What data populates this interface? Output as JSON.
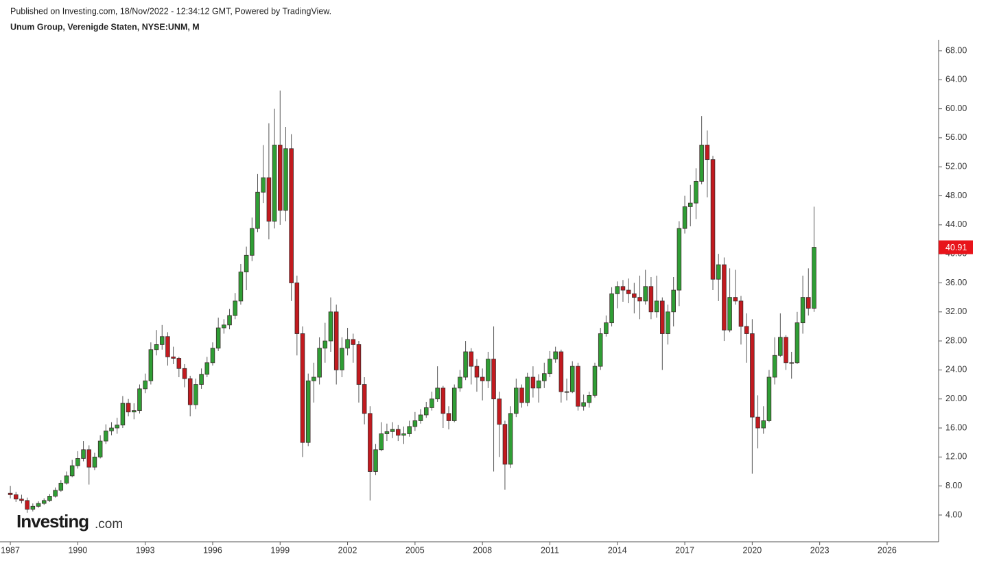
{
  "chart_data": {
    "type": "candlestick",
    "title": "Published on Investing.com, 18/Nov/2022 - 12:34:12 GMT, Powered by TradingView.",
    "subtitle": "Unum Group, Verenigde Staten, NYSE:UNM, M",
    "logo": "Investing",
    "logo_suffix": ".com",
    "up_color": "#2f9e35",
    "down_color": "#c21a1f",
    "grid": false,
    "xlim": [
      1986.54,
      2028.29
    ],
    "ylim": [
      0.31,
      69.51
    ],
    "xticks": [
      1987,
      1990,
      1993,
      1996,
      1999,
      2002,
      2005,
      2008,
      2011,
      2014,
      2017,
      2020,
      2023,
      2026
    ],
    "yticks": [
      {
        "value": 4,
        "label": "4.00"
      },
      {
        "value": 8,
        "label": "8.00"
      },
      {
        "value": 12,
        "label": "12.00"
      },
      {
        "value": 16,
        "label": "16.00"
      },
      {
        "value": 20,
        "label": "20.00"
      },
      {
        "value": 24,
        "label": "24.00"
      },
      {
        "value": 28,
        "label": "28.00"
      },
      {
        "value": 32,
        "label": "32.00"
      },
      {
        "value": 36,
        "label": "36.00"
      },
      {
        "value": 40,
        "label": "40.00"
      },
      {
        "value": 44,
        "label": "44.00"
      },
      {
        "value": 48,
        "label": "48.00"
      },
      {
        "value": 52,
        "label": "52.00"
      },
      {
        "value": 56,
        "label": "56.00"
      },
      {
        "value": 60,
        "label": "60.00"
      },
      {
        "value": 64,
        "label": "64.00"
      },
      {
        "value": 68,
        "label": "68.00"
      }
    ],
    "x": [
      1987,
      1987.25,
      1987.5,
      1987.75,
      1988,
      1988.25,
      1988.5,
      1988.75,
      1989,
      1989.25,
      1989.5,
      1989.75,
      1990,
      1990.25,
      1990.5,
      1990.75,
      1991,
      1991.25,
      1991.5,
      1991.75,
      1992,
      1992.25,
      1992.5,
      1992.75,
      1993,
      1993.25,
      1993.5,
      1993.75,
      1994,
      1994.25,
      1994.5,
      1994.75,
      1995,
      1995.25,
      1995.5,
      1995.75,
      1996,
      1996.25,
      1996.5,
      1996.75,
      1997,
      1997.25,
      1997.5,
      1997.75,
      1998,
      1998.25,
      1998.5,
      1998.75,
      1999,
      1999.25,
      1999.5,
      1999.75,
      2000,
      2000.25,
      2000.5,
      2000.75,
      2001,
      2001.25,
      2001.5,
      2001.75,
      2002,
      2002.25,
      2002.5,
      2002.75,
      2003,
      2003.25,
      2003.5,
      2003.75,
      2004,
      2004.25,
      2004.5,
      2004.75,
      2005,
      2005.25,
      2005.5,
      2005.75,
      2006,
      2006.25,
      2006.5,
      2006.75,
      2007,
      2007.25,
      2007.5,
      2007.75,
      2008,
      2008.25,
      2008.5,
      2008.75,
      2009,
      2009.25,
      2009.5,
      2009.75,
      2010,
      2010.25,
      2010.5,
      2010.75,
      2011,
      2011.25,
      2011.5,
      2011.75,
      2012,
      2012.25,
      2012.5,
      2012.75,
      2013,
      2013.25,
      2013.5,
      2013.75,
      2014,
      2014.25,
      2014.5,
      2014.75,
      2015,
      2015.25,
      2015.5,
      2015.75,
      2016,
      2016.25,
      2016.5,
      2016.75,
      2017,
      2017.25,
      2017.5,
      2017.75,
      2018,
      2018.25,
      2018.5,
      2018.75,
      2019,
      2019.25,
      2019.5,
      2019.75,
      2020,
      2020.25,
      2020.5,
      2020.75,
      2021,
      2021.25,
      2021.5,
      2021.75,
      2022,
      2022.25,
      2022.5,
      2022.75
    ],
    "open": [
      7.0,
      6.8,
      6.2,
      6.0,
      4.8,
      5.2,
      5.6,
      6.0,
      6.6,
      7.4,
      8.4,
      9.4,
      10.8,
      11.8,
      13.0,
      10.6,
      12.0,
      14.2,
      15.6,
      16.0,
      16.4,
      19.4,
      18.2,
      18.4,
      21.4,
      22.5,
      26.8,
      27.5,
      28.6,
      25.8,
      25.6,
      24.2,
      22.8,
      19.2,
      22.0,
      23.4,
      25.0,
      27.0,
      29.8,
      30.2,
      31.5,
      33.5,
      37.5,
      39.8,
      43.5,
      48.5,
      50.5,
      44.5,
      55.0,
      46.0,
      54.5,
      36.0,
      29.0,
      14.0,
      22.5,
      23.0,
      27.0,
      28.0,
      32.0,
      24.0,
      27.0,
      28.2,
      27.5,
      22.0,
      18.0,
      10.0,
      13.0,
      15.2,
      15.5,
      15.8,
      15.0,
      15.2,
      16.2,
      17.0,
      17.8,
      18.8,
      20.0,
      21.5,
      18.0,
      17.0,
      21.5,
      23.0,
      26.5,
      24.5,
      23.0,
      22.5,
      25.5,
      20.0,
      16.5,
      11.0,
      18.0,
      21.5,
      19.5,
      23.0,
      21.5,
      22.5,
      23.5,
      25.5,
      26.5,
      21.0,
      21.0,
      24.5,
      19.0,
      19.5,
      20.5,
      24.5,
      29.0,
      30.5,
      34.5,
      35.5,
      35.0,
      34.5,
      34.0,
      33.5,
      35.5,
      32.0,
      33.5,
      29.0,
      32.0,
      35.0,
      43.5,
      46.5,
      47.0,
      50.0,
      55.0,
      53.0,
      36.5,
      38.5,
      29.5,
      34.0,
      33.5,
      30.0,
      29.0,
      17.5,
      16.0,
      17.0,
      23.0,
      26.0,
      28.5,
      25.0,
      25.0,
      30.5,
      34.0,
      32.5
    ],
    "high": [
      8.0,
      7.2,
      6.8,
      6.4,
      5.6,
      5.9,
      6.3,
      6.9,
      7.8,
      8.8,
      10.0,
      11.6,
      12.8,
      14.2,
      13.6,
      12.6,
      15.0,
      16.5,
      16.8,
      17.4,
      20.4,
      20.0,
      19.4,
      22.0,
      23.5,
      27.8,
      29.5,
      30.2,
      29.2,
      27.2,
      25.8,
      24.8,
      23.2,
      22.8,
      24.2,
      25.8,
      27.8,
      31.2,
      31.0,
      32.4,
      34.6,
      38.6,
      41.0,
      45.0,
      51.0,
      55.0,
      58.0,
      60.0,
      62.5,
      57.5,
      56.5,
      37.0,
      30.0,
      23.5,
      25.0,
      28.5,
      30.5,
      34.0,
      33.0,
      28.5,
      29.8,
      29.0,
      28.0,
      23.0,
      19.0,
      13.8,
      16.8,
      16.6,
      16.8,
      16.4,
      16.2,
      17.0,
      18.2,
      18.6,
      19.6,
      21.0,
      24.5,
      21.8,
      19.0,
      22.0,
      24.0,
      28.0,
      27.0,
      25.5,
      24.2,
      26.5,
      30.0,
      21.0,
      17.0,
      19.0,
      22.8,
      22.0,
      23.6,
      24.5,
      23.4,
      25.0,
      26.6,
      27.2,
      26.8,
      22.8,
      25.2,
      25.0,
      20.6,
      21.0,
      25.0,
      29.8,
      31.5,
      35.4,
      36.2,
      36.4,
      36.6,
      36.0,
      37.0,
      37.8,
      36.8,
      37.0,
      34.0,
      33.0,
      36.8,
      44.5,
      48.0,
      49.5,
      51.8,
      59.0,
      57.0,
      53.5,
      40.0,
      39.5,
      38.0,
      37.8,
      34.2,
      31.8,
      31.0,
      20.5,
      19.0,
      24.0,
      28.5,
      31.8,
      28.8,
      26.5,
      32.0,
      37.0,
      38.0,
      46.5
    ],
    "low": [
      6.3,
      5.8,
      5.6,
      4.3,
      4.5,
      5.0,
      5.4,
      5.8,
      6.4,
      7.2,
      8.2,
      9.2,
      10.4,
      11.4,
      8.2,
      10.2,
      11.8,
      13.8,
      15.0,
      15.2,
      16.0,
      17.6,
      17.2,
      18.0,
      20.8,
      22.0,
      26.0,
      26.8,
      24.6,
      24.8,
      23.0,
      21.6,
      17.6,
      18.6,
      21.4,
      23.0,
      24.6,
      26.6,
      29.0,
      29.6,
      31.0,
      33.0,
      35.0,
      39.0,
      43.0,
      47.0,
      42.0,
      43.5,
      44.0,
      44.5,
      33.5,
      26.0,
      12.0,
      13.5,
      19.5,
      22.0,
      25.0,
      26.5,
      22.0,
      23.0,
      26.0,
      25.0,
      19.5,
      16.5,
      6.0,
      9.5,
      12.8,
      14.2,
      14.6,
      14.2,
      13.8,
      14.8,
      15.6,
      16.6,
      17.4,
      18.4,
      19.6,
      16.0,
      15.8,
      16.8,
      21.0,
      22.6,
      22.0,
      21.0,
      19.8,
      21.5,
      10.0,
      12.0,
      7.5,
      10.5,
      17.5,
      18.8,
      19.0,
      20.2,
      19.5,
      21.5,
      23.0,
      25.0,
      19.5,
      19.8,
      20.8,
      18.4,
      18.4,
      18.8,
      20.2,
      24.0,
      28.6,
      30.0,
      32.5,
      33.4,
      33.2,
      31.8,
      31.0,
      33.0,
      31.0,
      31.2,
      24.0,
      27.5,
      30.0,
      32.8,
      42.8,
      43.8,
      44.8,
      49.6,
      47.8,
      35.0,
      33.5,
      28.0,
      29.2,
      33.0,
      27.5,
      25.0,
      9.7,
      13.2,
      15.2,
      16.8,
      22.0,
      25.8,
      24.0,
      22.8,
      24.8,
      29.0,
      31.5,
      32.0
    ],
    "close": [
      6.8,
      6.2,
      6.0,
      4.8,
      5.2,
      5.6,
      6.0,
      6.6,
      7.4,
      8.4,
      9.4,
      10.8,
      11.8,
      13.0,
      10.6,
      12.0,
      14.2,
      15.6,
      16.0,
      16.4,
      19.4,
      18.2,
      18.4,
      21.4,
      22.5,
      26.8,
      27.5,
      28.6,
      25.8,
      25.6,
      24.2,
      22.8,
      19.2,
      22.0,
      23.4,
      25.0,
      27.0,
      29.8,
      30.2,
      31.5,
      33.5,
      37.5,
      39.8,
      43.5,
      48.5,
      50.5,
      44.5,
      55.0,
      46.0,
      54.5,
      36.0,
      29.0,
      14.0,
      22.5,
      23.0,
      27.0,
      28.0,
      32.0,
      24.0,
      27.0,
      28.2,
      27.5,
      22.0,
      18.0,
      10.0,
      13.0,
      15.2,
      15.5,
      15.8,
      15.0,
      15.2,
      16.2,
      17.0,
      17.8,
      18.8,
      20.0,
      21.5,
      18.0,
      17.0,
      21.5,
      23.0,
      26.5,
      24.5,
      23.0,
      22.5,
      25.5,
      20.0,
      16.5,
      11.0,
      18.0,
      21.5,
      19.5,
      23.0,
      21.5,
      22.5,
      23.5,
      25.5,
      26.5,
      21.0,
      21.0,
      24.5,
      19.0,
      19.5,
      20.5,
      24.5,
      29.0,
      30.5,
      34.5,
      35.5,
      35.0,
      34.5,
      34.0,
      33.5,
      35.5,
      32.0,
      33.5,
      29.0,
      32.0,
      35.0,
      43.5,
      46.5,
      47.0,
      50.0,
      55.0,
      53.0,
      36.5,
      38.5,
      29.5,
      34.0,
      33.5,
      30.0,
      29.0,
      17.5,
      16.0,
      17.0,
      23.0,
      26.0,
      28.5,
      25.0,
      25.0,
      30.5,
      34.0,
      32.5,
      40.91
    ]
  }
}
